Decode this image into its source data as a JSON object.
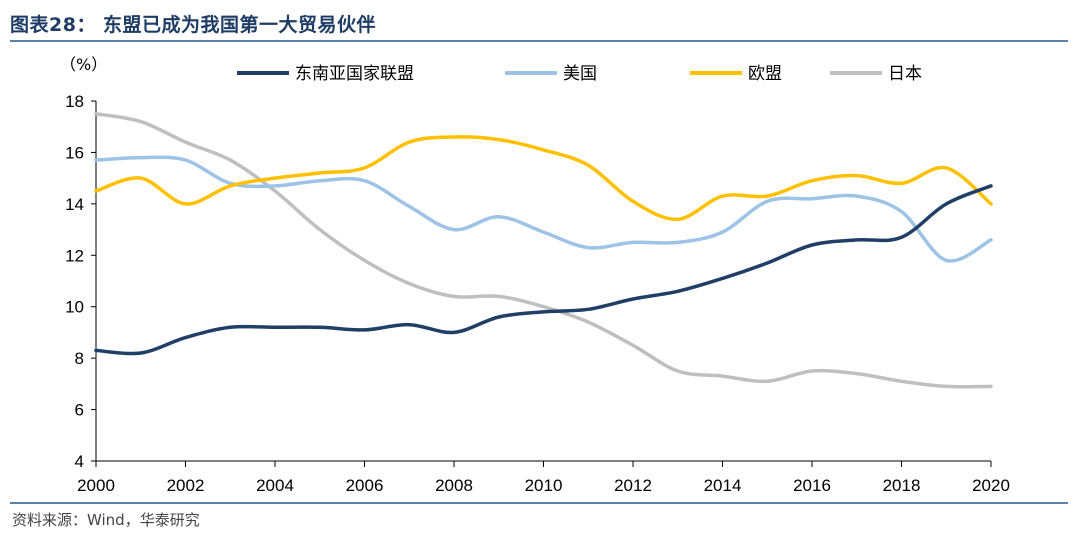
{
  "header": {
    "title": "图表28：  东盟已成为我国第一大贸易伙伴"
  },
  "footer": {
    "source": "资料来源：Wind，华泰研究"
  },
  "chart_data": {
    "type": "line",
    "unit_label": "（%）",
    "x": [
      2000,
      2001,
      2002,
      2003,
      2004,
      2005,
      2006,
      2007,
      2008,
      2009,
      2010,
      2011,
      2012,
      2013,
      2014,
      2015,
      2016,
      2017,
      2018,
      2019,
      2020
    ],
    "xticks": [
      "2000",
      "2002",
      "2004",
      "2006",
      "2008",
      "2010",
      "2012",
      "2014",
      "2016",
      "2018",
      "2020"
    ],
    "yticks": [
      "4",
      "6",
      "8",
      "10",
      "12",
      "14",
      "16",
      "18"
    ],
    "ylim": [
      4,
      18
    ],
    "xlim": [
      2000,
      2020
    ],
    "grid": false,
    "legend_position": "top",
    "series": [
      {
        "name": "东南亚国家联盟",
        "color": "#1f3f66",
        "values": [
          8.3,
          8.2,
          8.8,
          9.2,
          9.2,
          9.2,
          9.1,
          9.3,
          9.0,
          9.6,
          9.8,
          9.9,
          10.3,
          10.6,
          11.1,
          11.7,
          12.4,
          12.6,
          12.7,
          14.0,
          14.7
        ]
      },
      {
        "name": "美国",
        "color": "#9dc3e6",
        "values": [
          15.7,
          15.8,
          15.7,
          14.8,
          14.7,
          14.9,
          14.9,
          13.9,
          13.0,
          13.5,
          12.9,
          12.3,
          12.5,
          12.5,
          12.9,
          14.1,
          14.2,
          14.3,
          13.7,
          11.8,
          12.6
        ]
      },
      {
        "name": "欧盟",
        "color": "#ffc000",
        "values": [
          14.5,
          15.0,
          14.0,
          14.7,
          15.0,
          15.2,
          15.4,
          16.4,
          16.6,
          16.5,
          16.1,
          15.5,
          14.1,
          13.4,
          14.3,
          14.3,
          14.9,
          15.1,
          14.8,
          15.4,
          14.0
        ]
      },
      {
        "name": "日本",
        "color": "#bfbfbf",
        "values": [
          17.5,
          17.2,
          16.4,
          15.7,
          14.5,
          13.0,
          11.8,
          10.9,
          10.4,
          10.4,
          10.0,
          9.4,
          8.5,
          7.5,
          7.3,
          7.1,
          7.5,
          7.4,
          7.1,
          6.9,
          6.9
        ]
      }
    ]
  }
}
